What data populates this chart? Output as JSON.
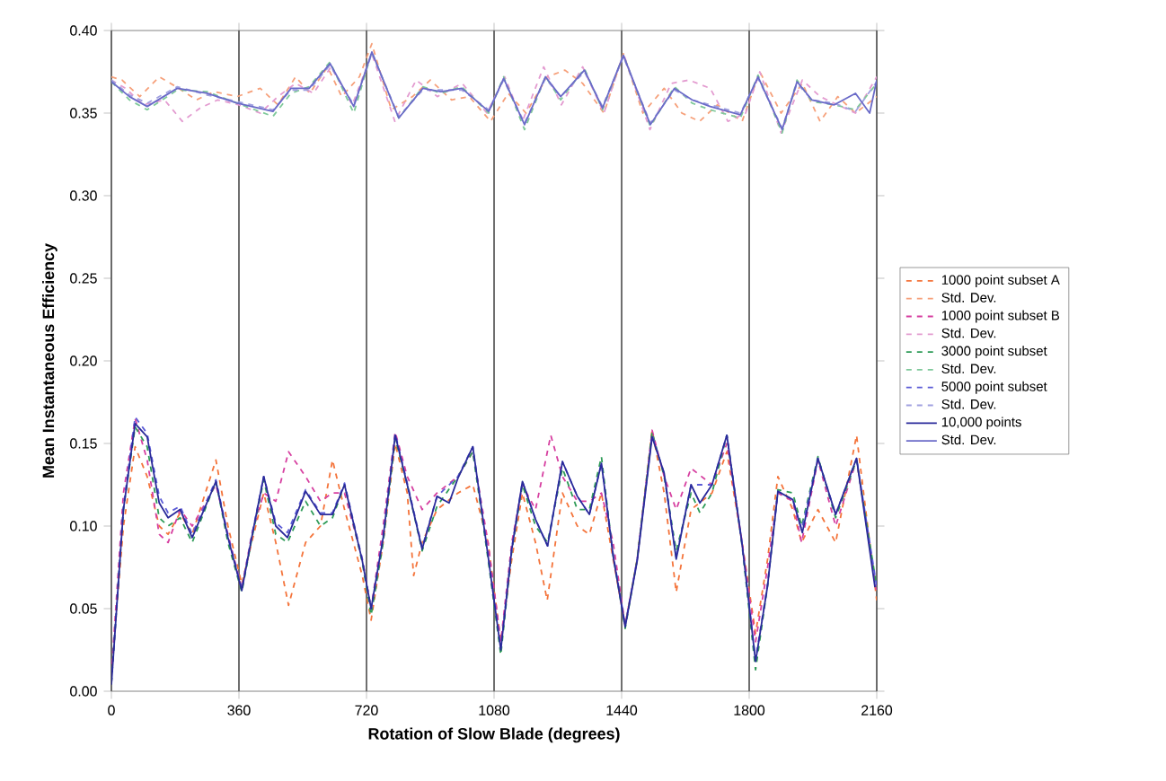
{
  "chart_data": {
    "type": "line",
    "xlabel": "Rotation of Slow Blade (degrees)",
    "ylabel": "Mean Instantaneous Efficiency",
    "xlim": [
      0,
      2160
    ],
    "xticks": [
      0,
      360,
      720,
      1080,
      1440,
      1800,
      2160
    ],
    "ylim": [
      0,
      0.4
    ],
    "yticks": [
      {
        "value": 0,
        "label": "0.00"
      },
      {
        "value": 0.05,
        "label": "0.05"
      },
      {
        "value": 0.1,
        "label": "0.10"
      },
      {
        "value": 0.15,
        "label": "0.15"
      },
      {
        "value": 0.2,
        "label": "0.20"
      },
      {
        "value": 0.25,
        "label": "0.25"
      },
      {
        "value": 0.3,
        "label": "0.30"
      },
      {
        "value": 0.35,
        "label": "0.35"
      },
      {
        "value": 0.4,
        "label": "0.40"
      }
    ],
    "grid": "x",
    "legend": "right",
    "series": [
      {
        "name": "1000 point subset A",
        "color": "#f4743b",
        "line_style": "dashed",
        "x": [
          0,
          34,
          67,
          101,
          135,
          160,
          194,
          228,
          295,
          329,
          368,
          396,
          430,
          464,
          500,
          548,
          590,
          624,
          658,
          708,
          733,
          767,
          801,
          835,
          853,
          877,
          919,
          978,
          1020,
          1063,
          1099,
          1130,
          1160,
          1197,
          1230,
          1273,
          1315,
          1349,
          1383,
          1416,
          1450,
          1484,
          1526,
          1560,
          1594,
          1636,
          1695,
          1737,
          1780,
          1818,
          1852,
          1881,
          1923,
          1948,
          1994,
          2044,
          2103,
          2160
        ],
        "values": [
          0.01,
          0.1,
          0.148,
          0.13,
          0.1,
          0.095,
          0.108,
          0.095,
          0.14,
          0.1,
          0.065,
          0.09,
          0.12,
          0.09,
          0.052,
          0.09,
          0.1,
          0.14,
          0.11,
          0.07,
          0.043,
          0.09,
          0.15,
          0.12,
          0.07,
          0.09,
          0.11,
          0.12,
          0.125,
          0.09,
          0.03,
          0.08,
          0.12,
          0.09,
          0.055,
          0.12,
          0.1,
          0.095,
          0.12,
          0.08,
          0.04,
          0.08,
          0.158,
          0.12,
          0.06,
          0.11,
          0.12,
          0.145,
          0.09,
          0.035,
          0.08,
          0.13,
          0.11,
          0.09,
          0.11,
          0.09,
          0.155,
          0.055
        ]
      },
      {
        "name": "Std. Dev.",
        "color": "#f6a07a",
        "line_style": "dashed",
        "x": [
          0,
          30,
          80,
          135,
          190,
          240,
          290,
          355,
          420,
          470,
          520,
          560,
          610,
          650,
          700,
          735,
          790,
          850,
          900,
          960,
          1010,
          1070,
          1120,
          1170,
          1230,
          1280,
          1330,
          1390,
          1445,
          1500,
          1560,
          1610,
          1660,
          1710,
          1780,
          1830,
          1890,
          1950,
          2000,
          2050,
          2100,
          2160
        ],
        "values": [
          0.372,
          0.37,
          0.36,
          0.372,
          0.365,
          0.358,
          0.363,
          0.36,
          0.365,
          0.355,
          0.372,
          0.362,
          0.378,
          0.36,
          0.372,
          0.392,
          0.352,
          0.36,
          0.37,
          0.358,
          0.36,
          0.345,
          0.362,
          0.35,
          0.372,
          0.376,
          0.368,
          0.35,
          0.386,
          0.35,
          0.365,
          0.35,
          0.345,
          0.355,
          0.345,
          0.375,
          0.35,
          0.368,
          0.345,
          0.36,
          0.35,
          0.36
        ]
      },
      {
        "name": "1000 point subset B",
        "color": "#d63fa0",
        "line_style": "dashed",
        "x": [
          0,
          34,
          67,
          101,
          135,
          160,
          194,
          228,
          295,
          329,
          368,
          396,
          430,
          464,
          500,
          548,
          590,
          624,
          658,
          708,
          733,
          767,
          801,
          835,
          877,
          919,
          978,
          1020,
          1063,
          1099,
          1130,
          1160,
          1197,
          1240,
          1273,
          1315,
          1349,
          1383,
          1416,
          1450,
          1484,
          1526,
          1560,
          1594,
          1636,
          1695,
          1737,
          1780,
          1818,
          1852,
          1881,
          1923,
          1948,
          1994,
          2044,
          2103,
          2160
        ],
        "values": [
          0.01,
          0.12,
          0.165,
          0.14,
          0.095,
          0.09,
          0.11,
          0.1,
          0.125,
          0.095,
          0.062,
          0.095,
          0.12,
          0.115,
          0.145,
          0.13,
          0.115,
          0.12,
          0.12,
          0.08,
          0.05,
          0.1,
          0.157,
          0.13,
          0.11,
          0.12,
          0.13,
          0.145,
          0.09,
          0.03,
          0.09,
          0.125,
          0.11,
          0.155,
          0.13,
          0.115,
          0.115,
          0.12,
          0.09,
          0.04,
          0.08,
          0.158,
          0.13,
          0.11,
          0.135,
          0.125,
          0.15,
          0.09,
          0.03,
          0.075,
          0.12,
          0.115,
          0.09,
          0.14,
          0.1,
          0.14,
          0.06
        ]
      },
      {
        "name": "Std. Dev.",
        "color": "#e39bd0",
        "line_style": "dashed",
        "x": [
          0,
          40,
          90,
          150,
          200,
          250,
          300,
          360,
          420,
          470,
          520,
          570,
          620,
          680,
          735,
          800,
          860,
          920,
          990,
          1060,
          1110,
          1160,
          1220,
          1270,
          1330,
          1390,
          1445,
          1520,
          1580,
          1630,
          1690,
          1740,
          1790,
          1830,
          1890,
          1950,
          2000,
          2050,
          2100,
          2160
        ],
        "values": [
          0.37,
          0.365,
          0.355,
          0.358,
          0.345,
          0.353,
          0.358,
          0.355,
          0.35,
          0.36,
          0.368,
          0.362,
          0.378,
          0.355,
          0.386,
          0.345,
          0.37,
          0.36,
          0.368,
          0.35,
          0.372,
          0.345,
          0.378,
          0.355,
          0.378,
          0.35,
          0.386,
          0.34,
          0.368,
          0.37,
          0.365,
          0.345,
          0.35,
          0.375,
          0.338,
          0.37,
          0.36,
          0.355,
          0.35,
          0.372
        ]
      },
      {
        "name": "3000 point subset",
        "color": "#2e9b57",
        "line_style": "dashed",
        "x": [
          0,
          34,
          67,
          101,
          135,
          160,
          194,
          228,
          295,
          329,
          368,
          396,
          430,
          464,
          497,
          548,
          590,
          624,
          658,
          708,
          733,
          767,
          801,
          835,
          877,
          919,
          978,
          1020,
          1063,
          1099,
          1130,
          1160,
          1197,
          1231,
          1273,
          1315,
          1349,
          1383,
          1416,
          1450,
          1484,
          1526,
          1560,
          1594,
          1636,
          1661,
          1695,
          1737,
          1780,
          1818,
          1852,
          1881,
          1923,
          1948,
          1994,
          2044,
          2103,
          2160
        ],
        "values": [
          0.005,
          0.11,
          0.16,
          0.148,
          0.105,
          0.1,
          0.105,
          0.09,
          0.127,
          0.09,
          0.06,
          0.092,
          0.128,
          0.095,
          0.09,
          0.115,
          0.1,
          0.105,
          0.125,
          0.078,
          0.046,
          0.09,
          0.153,
          0.125,
          0.085,
          0.112,
          0.13,
          0.145,
          0.08,
          0.022,
          0.085,
          0.125,
          0.1,
          0.09,
          0.135,
          0.11,
          0.11,
          0.142,
          0.082,
          0.038,
          0.08,
          0.157,
          0.13,
          0.085,
          0.12,
          0.108,
          0.12,
          0.155,
          0.088,
          0.013,
          0.064,
          0.122,
          0.12,
          0.1,
          0.142,
          0.105,
          0.14,
          0.063
        ]
      },
      {
        "name": "Std. Dev.",
        "color": "#7fc99a",
        "line_style": "dashed",
        "x": [
          0,
          51,
          101,
          186,
          270,
          355,
          456,
          507,
          558,
          617,
          684,
          735,
          811,
          879,
          930,
          989,
          1065,
          1107,
          1166,
          1225,
          1268,
          1335,
          1386,
          1445,
          1521,
          1589,
          1639,
          1690,
          1775,
          1825,
          1893,
          1935,
          1977,
          2040,
          2100,
          2160
        ],
        "values": [
          0.369,
          0.358,
          0.352,
          0.364,
          0.363,
          0.356,
          0.348,
          0.362,
          0.366,
          0.381,
          0.35,
          0.387,
          0.347,
          0.366,
          0.362,
          0.366,
          0.35,
          0.372,
          0.34,
          0.372,
          0.358,
          0.377,
          0.352,
          0.385,
          0.342,
          0.366,
          0.356,
          0.352,
          0.347,
          0.373,
          0.338,
          0.37,
          0.357,
          0.355,
          0.352,
          0.368
        ]
      },
      {
        "name": "5000 point subset",
        "color": "#5b5bd6",
        "line_style": "dashed",
        "x": [
          0,
          34,
          67,
          101,
          135,
          160,
          194,
          228,
          295,
          329,
          368,
          396,
          430,
          464,
          497,
          548,
          590,
          624,
          658,
          708,
          733,
          767,
          801,
          835,
          877,
          919,
          978,
          1020,
          1063,
          1099,
          1130,
          1160,
          1197,
          1231,
          1273,
          1315,
          1349,
          1383,
          1416,
          1450,
          1484,
          1526,
          1560,
          1594,
          1636,
          1695,
          1737,
          1780,
          1818,
          1852,
          1881,
          1923,
          1948,
          1994,
          2044,
          2103,
          2160
        ],
        "values": [
          0.005,
          0.112,
          0.166,
          0.156,
          0.118,
          0.108,
          0.112,
          0.095,
          0.128,
          0.094,
          0.062,
          0.094,
          0.13,
          0.102,
          0.096,
          0.122,
          0.108,
          0.108,
          0.126,
          0.08,
          0.05,
          0.094,
          0.156,
          0.126,
          0.087,
          0.118,
          0.13,
          0.148,
          0.083,
          0.026,
          0.087,
          0.127,
          0.104,
          0.088,
          0.139,
          0.118,
          0.107,
          0.138,
          0.083,
          0.04,
          0.08,
          0.155,
          0.132,
          0.081,
          0.125,
          0.125,
          0.155,
          0.089,
          0.019,
          0.065,
          0.121,
          0.116,
          0.098,
          0.141,
          0.107,
          0.141,
          0.063
        ]
      },
      {
        "name": "Std. Dev.",
        "color": "#a0a0e0",
        "line_style": "dashed",
        "x": [
          0,
          51,
          101,
          186,
          270,
          355,
          456,
          507,
          558,
          617,
          684,
          735,
          811,
          879,
          930,
          989,
          1065,
          1107,
          1166,
          1225,
          1268,
          1335,
          1386,
          1445,
          1521,
          1589,
          1639,
          1690,
          1775,
          1825,
          1893,
          1935,
          1977,
          2040,
          2100,
          2160
        ],
        "values": [
          0.37,
          0.361,
          0.356,
          0.366,
          0.361,
          0.357,
          0.352,
          0.364,
          0.364,
          0.379,
          0.355,
          0.386,
          0.348,
          0.364,
          0.364,
          0.364,
          0.352,
          0.37,
          0.344,
          0.371,
          0.36,
          0.375,
          0.354,
          0.384,
          0.344,
          0.364,
          0.358,
          0.355,
          0.35,
          0.371,
          0.341,
          0.368,
          0.358,
          0.356,
          0.351,
          0.369
        ]
      },
      {
        "name": "10,000 points",
        "color": "#2a2a9a",
        "line_style": "solid",
        "x": [
          0,
          34,
          67,
          101,
          135,
          160,
          194,
          228,
          295,
          329,
          368,
          396,
          430,
          464,
          497,
          548,
          590,
          624,
          658,
          708,
          733,
          767,
          801,
          835,
          877,
          919,
          953,
          978,
          1020,
          1063,
          1099,
          1130,
          1160,
          1197,
          1231,
          1273,
          1315,
          1349,
          1383,
          1416,
          1450,
          1484,
          1526,
          1560,
          1594,
          1636,
          1661,
          1695,
          1737,
          1780,
          1818,
          1852,
          1881,
          1923,
          1950,
          1994,
          2044,
          2103,
          2155
        ],
        "values": [
          0.004,
          0.11,
          0.162,
          0.154,
          0.114,
          0.105,
          0.11,
          0.093,
          0.127,
          0.093,
          0.061,
          0.093,
          0.13,
          0.1,
          0.093,
          0.121,
          0.107,
          0.107,
          0.125,
          0.079,
          0.05,
          0.093,
          0.155,
          0.125,
          0.086,
          0.118,
          0.114,
          0.129,
          0.148,
          0.082,
          0.025,
          0.086,
          0.127,
          0.104,
          0.088,
          0.139,
          0.118,
          0.107,
          0.138,
          0.082,
          0.039,
          0.079,
          0.154,
          0.132,
          0.08,
          0.125,
          0.114,
          0.125,
          0.155,
          0.089,
          0.018,
          0.064,
          0.121,
          0.116,
          0.096,
          0.141,
          0.107,
          0.141,
          0.063
        ]
      },
      {
        "name": "Std. Dev.",
        "color": "#6a6ac8",
        "line_style": "solid",
        "x": [
          0,
          51,
          101,
          186,
          270,
          355,
          456,
          507,
          558,
          617,
          684,
          735,
          811,
          879,
          930,
          989,
          1065,
          1107,
          1166,
          1225,
          1268,
          1335,
          1386,
          1445,
          1521,
          1589,
          1639,
          1690,
          1775,
          1825,
          1893,
          1935,
          1977,
          2040,
          2100,
          2140,
          2160
        ],
        "values": [
          0.369,
          0.36,
          0.354,
          0.365,
          0.362,
          0.356,
          0.351,
          0.365,
          0.365,
          0.38,
          0.354,
          0.387,
          0.347,
          0.365,
          0.363,
          0.365,
          0.351,
          0.371,
          0.343,
          0.372,
          0.36,
          0.376,
          0.353,
          0.385,
          0.343,
          0.365,
          0.358,
          0.354,
          0.349,
          0.372,
          0.34,
          0.369,
          0.358,
          0.355,
          0.362,
          0.35,
          0.37
        ]
      }
    ]
  }
}
